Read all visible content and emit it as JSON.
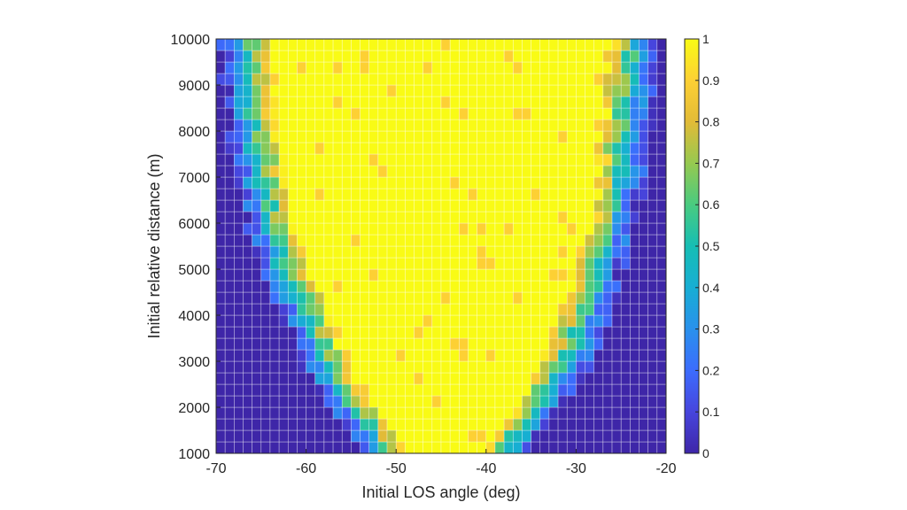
{
  "chart_data": {
    "type": "heatmap",
    "title": "",
    "xlabel": "Initial LOS angle (deg)",
    "ylabel": "Initial relative distance (m)",
    "xlim": [
      -70,
      -20
    ],
    "ylim": [
      1000,
      10000
    ],
    "x_ticks": [
      -70,
      -60,
      -50,
      -40,
      -30,
      -20
    ],
    "x_tick_labels": [
      "-70",
      "-60",
      "-50",
      "-40",
      "-30",
      "-20"
    ],
    "y_ticks": [
      1000,
      2000,
      3000,
      4000,
      5000,
      6000,
      7000,
      8000,
      9000,
      10000
    ],
    "y_tick_labels": [
      "1000",
      "2000",
      "3000",
      "4000",
      "5000",
      "6000",
      "7000",
      "8000",
      "9000",
      "10000"
    ],
    "grid_columns": 50,
    "grid_rows": 36,
    "colorbar": {
      "range": [
        0,
        1
      ],
      "ticks": [
        0,
        0.1,
        0.2,
        0.3,
        0.4,
        0.5,
        0.6,
        0.7,
        0.8,
        0.9,
        1
      ],
      "tick_labels": [
        "0",
        "0.1",
        "0.2",
        "0.3",
        "0.4",
        "0.5",
        "0.6",
        "0.7",
        "0.8",
        "0.9",
        "1"
      ],
      "colormap": "parula"
    },
    "boundary": {
      "description": "approximate x positions (deg) of the 0.5-level edge of the high-value region at each distance",
      "distance": [
        1000,
        2000,
        3000,
        4000,
        5000,
        6000,
        7000,
        8000,
        9000,
        10000
      ],
      "left_edge": [
        -51,
        -55,
        -58,
        -60,
        -62.5,
        -64,
        -65,
        -66,
        -66.5,
        -67
      ],
      "right_edge": [
        -38,
        -34,
        -31,
        -29,
        -27.5,
        -26,
        -25,
        -24.5,
        -24,
        -23.5
      ]
    }
  }
}
